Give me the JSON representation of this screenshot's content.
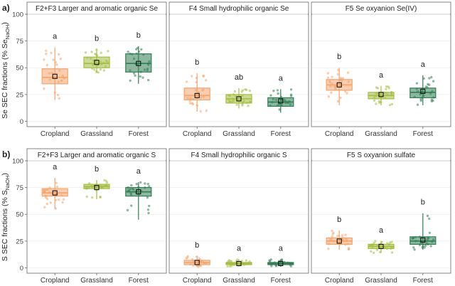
{
  "colors": {
    "Cropland": "#f4a46a",
    "Grassland": "#a3be3c",
    "Forest": "#2f7d52",
    "panel_border": "#666666",
    "strip_fill": "#ffffff",
    "grid": "#ebebeb"
  },
  "chart_data": [
    {
      "type": "box",
      "row_label": "a)",
      "ylabel": "Se SEC fractions (% Se",
      "ylabel_subscript": "NaOH",
      "ylabel_suffix": ")",
      "yticks": [
        0,
        25,
        50,
        75,
        100
      ],
      "ylim": [
        -5,
        100
      ],
      "categories": [
        "Cropland",
        "Grassland",
        "Forest"
      ],
      "panels": [
        {
          "title": "F2+F3 Larger and aromatic organic Se",
          "letters": [
            "a",
            "b",
            "b"
          ],
          "boxes": [
            {
              "q1": 35,
              "median": 41,
              "q3": 49,
              "whisker_low": 20,
              "whisker_high": 69,
              "mean": 42
            },
            {
              "q1": 50,
              "median": 54,
              "q3": 60,
              "whisker_low": 45,
              "whisker_high": 67,
              "mean": 55
            },
            {
              "q1": 46,
              "median": 54,
              "q3": 63,
              "whisker_low": 35,
              "whisker_high": 70,
              "mean": 54
            }
          ]
        },
        {
          "title": "F4 Small hydrophilic organic Se",
          "letters": [
            "b",
            "ab",
            "a"
          ],
          "boxes": [
            {
              "q1": 20,
              "median": 24,
              "q3": 31,
              "whisker_low": 9,
              "whisker_high": 45,
              "mean": 24
            },
            {
              "q1": 17,
              "median": 21,
              "q3": 25,
              "whisker_low": 12,
              "whisker_high": 31,
              "mean": 21
            },
            {
              "q1": 14,
              "median": 18,
              "q3": 22,
              "whisker_low": 8,
              "whisker_high": 30,
              "mean": 19
            }
          ]
        },
        {
          "title": "F5 Se oxyanion Se(IV)",
          "letters": [
            "b",
            "a",
            "a"
          ],
          "boxes": [
            {
              "q1": 29,
              "median": 34,
              "q3": 39,
              "whisker_low": 15,
              "whisker_high": 50,
              "mean": 34
            },
            {
              "q1": 21,
              "median": 24,
              "q3": 27,
              "whisker_low": 15,
              "whisker_high": 33,
              "mean": 25
            },
            {
              "q1": 22,
              "median": 27,
              "q3": 31,
              "whisker_low": 15,
              "whisker_high": 43,
              "mean": 28
            }
          ]
        }
      ]
    },
    {
      "type": "box",
      "row_label": "b)",
      "ylabel": "S SEC fractions (% S",
      "ylabel_subscript": "NaOH",
      "ylabel_suffix": ")",
      "yticks": [
        0,
        25,
        50,
        75,
        100
      ],
      "ylim": [
        -5,
        100
      ],
      "categories": [
        "Cropland",
        "Grassland",
        "Forest"
      ],
      "panels": [
        {
          "title": "F2+F3 Larger and aromatic organic S",
          "letters": [
            "a",
            "b",
            "a"
          ],
          "boxes": [
            {
              "q1": 67,
              "median": 70,
              "q3": 74,
              "whisker_low": 55,
              "whisker_high": 84,
              "mean": 70
            },
            {
              "q1": 74,
              "median": 76,
              "q3": 78,
              "whisker_low": 64,
              "whisker_high": 82,
              "mean": 75
            },
            {
              "q1": 67,
              "median": 71,
              "q3": 75,
              "whisker_low": 45,
              "whisker_high": 80,
              "mean": 71
            }
          ]
        },
        {
          "title": "F4 Small hydrophilic organic S",
          "letters": [
            "b",
            "a",
            "a"
          ],
          "boxes": [
            {
              "q1": 3,
              "median": 5,
              "q3": 7,
              "whisker_low": 1,
              "whisker_high": 11,
              "mean": 5
            },
            {
              "q1": 3,
              "median": 4,
              "q3": 5,
              "whisker_low": 1,
              "whisker_high": 8,
              "mean": 4
            },
            {
              "q1": 3,
              "median": 4,
              "q3": 5,
              "whisker_low": 1,
              "whisker_high": 8,
              "mean": 4
            }
          ]
        },
        {
          "title": "F5 S oxyanion sulfate",
          "letters": [
            "b",
            "a",
            "b"
          ],
          "boxes": [
            {
              "q1": 22,
              "median": 25,
              "q3": 28,
              "whisker_low": 17,
              "whisker_high": 35,
              "mean": 25
            },
            {
              "q1": 18,
              "median": 20,
              "q3": 22,
              "whisker_low": 14,
              "whisker_high": 25,
              "mean": 20
            },
            {
              "q1": 22,
              "median": 25,
              "q3": 29,
              "whisker_low": 17,
              "whisker_high": 51,
              "mean": 26
            }
          ]
        }
      ]
    }
  ]
}
